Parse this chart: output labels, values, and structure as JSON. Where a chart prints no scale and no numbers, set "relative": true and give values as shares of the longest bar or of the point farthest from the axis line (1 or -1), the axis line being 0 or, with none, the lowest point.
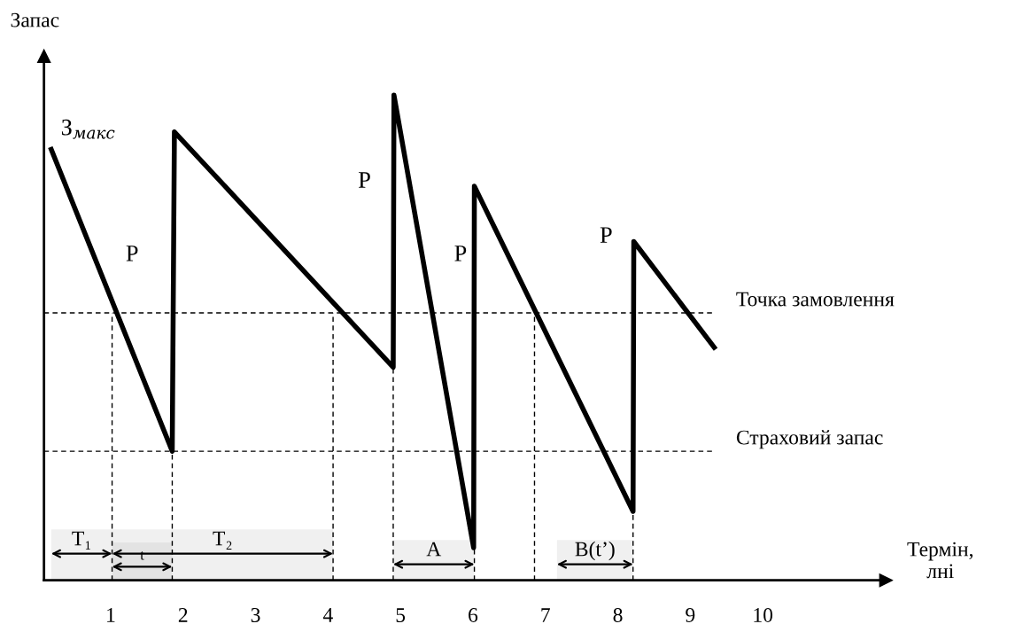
{
  "chart_data": {
    "type": "line",
    "relative": true,
    "xlabel": "Термін,\nлні",
    "ylabel": "Запас",
    "x": [
      0.18,
      1.85,
      1.88,
      4.9,
      4.91,
      6.01,
      6.02,
      8.21,
      8.22,
      9.33
    ],
    "series": [
      {
        "color": "#000000",
        "values": [
          0.888,
          0.266,
          0.924,
          0.439,
          1.0,
          0.067,
          0.812,
          0.142,
          0.698,
          0.48
        ]
      }
    ],
    "xlim": [
      0.08,
      11.7
    ],
    "xticks": [
      1,
      2,
      3,
      4,
      5,
      6,
      7,
      8,
      9,
      10
    ],
    "grid": false,
    "legend": false,
    "marker": "none",
    "line_style": "solid",
    "ref_lines": [
      {
        "axis": "y",
        "value": 0.551,
        "label": "Точка замовлення",
        "line_style": "dashed"
      },
      {
        "axis": "y",
        "value": 0.266,
        "label": "Страховий запас",
        "line_style": "dashed"
      },
      {
        "axis": "x",
        "value": 1.02,
        "line_style": "dashed"
      },
      {
        "axis": "x",
        "value": 1.85,
        "line_style": "dashed"
      },
      {
        "axis": "x",
        "value": 4.07,
        "line_style": "dashed"
      },
      {
        "axis": "x",
        "value": 4.9,
        "line_style": "dashed"
      },
      {
        "axis": "x",
        "value": 6.02,
        "line_style": "dashed"
      },
      {
        "axis": "x",
        "value": 6.85,
        "line_style": "dashed"
      },
      {
        "axis": "x",
        "value": 8.21,
        "line_style": "dashed"
      }
    ],
    "bands": [
      {
        "axis": "x",
        "from": 0.18,
        "to": 1.02,
        "label": "T₁",
        "color": "#f0f0f0"
      },
      {
        "axis": "x",
        "from": 1.02,
        "to": 4.07,
        "label": "T₂",
        "color": "#f0f0f0"
      },
      {
        "axis": "x",
        "from": 1.02,
        "to": 1.85,
        "label": "t",
        "color": "#e3e3e3"
      },
      {
        "axis": "x",
        "from": 4.9,
        "to": 6.02,
        "label": "A",
        "color": "#f0f0f0"
      },
      {
        "axis": "x",
        "from": 7.16,
        "to": 8.21,
        "label": "B(t’)",
        "color": "#f0f0f0"
      }
    ],
    "annotations": [
      "З$_{макс}$",
      "P",
      "P",
      "P",
      "P"
    ]
  }
}
